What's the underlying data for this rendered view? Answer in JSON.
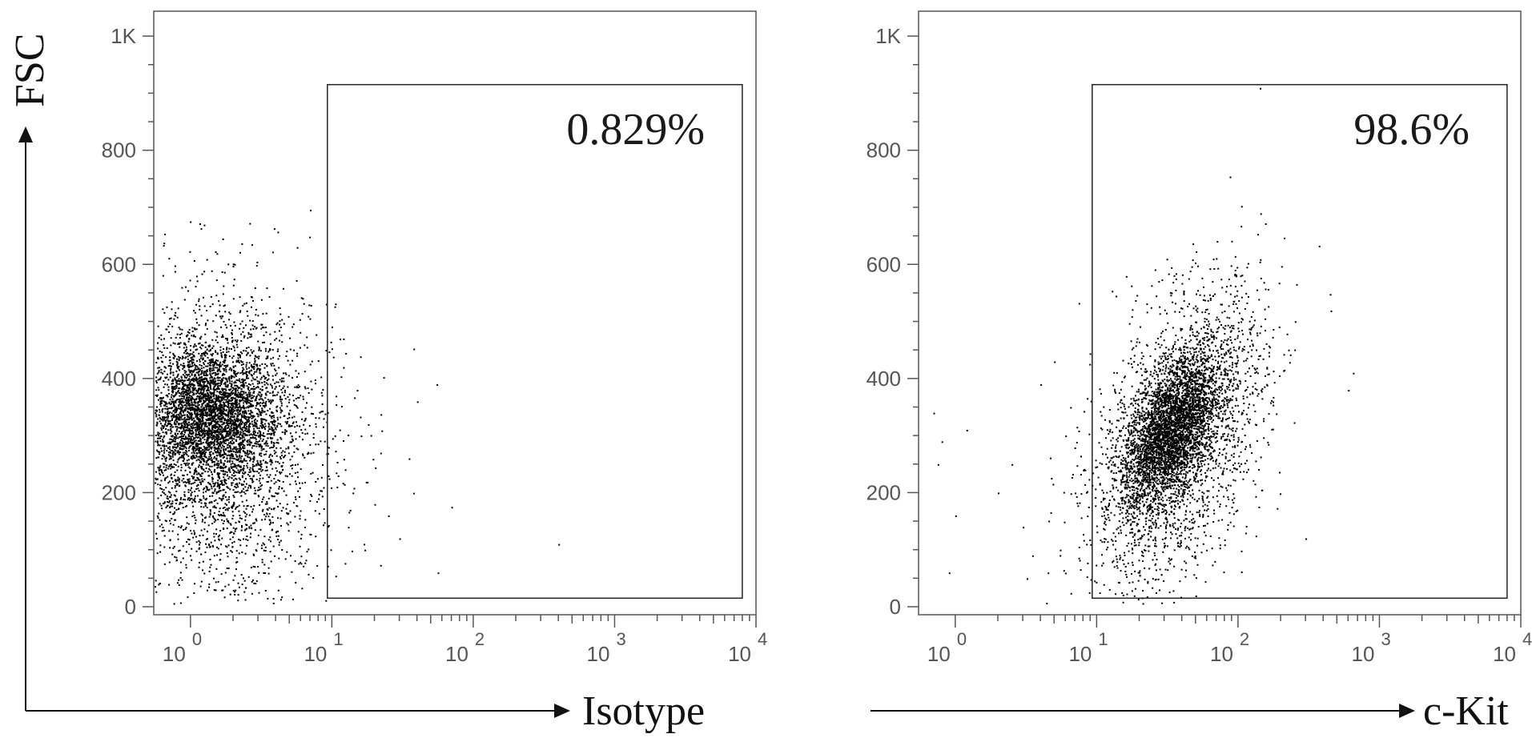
{
  "chart_data": [
    {
      "type": "scatter",
      "xlabel": "Isotype",
      "ylabel": "FSC",
      "x_scale": "log",
      "xlim": [
        0.55,
        10000
      ],
      "ylim": [
        0,
        1024
      ],
      "x_ticks": [
        {
          "base": "10",
          "exp": "0"
        },
        {
          "base": "10",
          "exp": "1"
        },
        {
          "base": "10",
          "exp": "2"
        },
        {
          "base": "10",
          "exp": "3"
        },
        {
          "base": "10",
          "exp": "4"
        }
      ],
      "y_ticks": [
        "0",
        "200",
        "400",
        "600",
        "800",
        "1K"
      ],
      "gate": {
        "x_min": 9.3,
        "x_max": 8000,
        "y_min": 15,
        "y_max": 915,
        "percent": "0.829%"
      },
      "populations": [
        {
          "cx": 1.3,
          "cy": 340,
          "sx_log": 0.22,
          "sy": 55,
          "n": 2600
        },
        {
          "cx": 1.6,
          "cy": 300,
          "sx_log": 0.32,
          "sy": 110,
          "n": 2400
        },
        {
          "cx": 1.8,
          "cy": 260,
          "sx_log": 0.4,
          "sy": 160,
          "n": 900
        }
      ],
      "outliers": [
        [
          12,
          420
        ],
        [
          15,
          380
        ],
        [
          18,
          320
        ],
        [
          22,
          270
        ],
        [
          11,
          230
        ],
        [
          14,
          200
        ],
        [
          20,
          180
        ],
        [
          25,
          160
        ],
        [
          13,
          140
        ],
        [
          30,
          120
        ],
        [
          17,
          100
        ],
        [
          40,
          360
        ],
        [
          55,
          390
        ],
        [
          70,
          175
        ],
        [
          400,
          110
        ],
        [
          56,
          60
        ],
        [
          12,
          470
        ],
        [
          16,
          300
        ],
        [
          35,
          260
        ]
      ]
    },
    {
      "type": "scatter",
      "xlabel": "c-Kit",
      "ylabel": "",
      "x_scale": "log",
      "xlim": [
        0.55,
        10000
      ],
      "ylim": [
        0,
        1024
      ],
      "x_ticks": [
        {
          "base": "10",
          "exp": "0"
        },
        {
          "base": "10",
          "exp": "1"
        },
        {
          "base": "10",
          "exp": "2"
        },
        {
          "base": "10",
          "exp": "3"
        },
        {
          "base": "10",
          "exp": "4"
        }
      ],
      "y_ticks": [
        "0",
        "200",
        "400",
        "600",
        "800",
        "1K"
      ],
      "gate": {
        "x_min": 9.3,
        "x_max": 8000,
        "y_min": 15,
        "y_max": 915,
        "percent": "98.6%"
      },
      "populations": [
        {
          "cx": 33,
          "cy": 310,
          "sx_log": 0.17,
          "sy": 65,
          "rho": 0.55,
          "n": 3200
        },
        {
          "cx": 38,
          "cy": 300,
          "sx_log": 0.3,
          "sy": 130,
          "rho": 0.45,
          "n": 2600
        }
      ],
      "outliers": [
        [
          0.7,
          340
        ],
        [
          0.8,
          290
        ],
        [
          1.0,
          160
        ],
        [
          1.2,
          310
        ],
        [
          0.9,
          60
        ],
        [
          2.5,
          250
        ],
        [
          3,
          140
        ],
        [
          3.5,
          90
        ],
        [
          4,
          390
        ],
        [
          4.5,
          60
        ],
        [
          5,
          430
        ],
        [
          6,
          300
        ],
        [
          7,
          200
        ],
        [
          8,
          240
        ],
        [
          6.5,
          350
        ],
        [
          5.5,
          100
        ],
        [
          2,
          200
        ],
        [
          600,
          380
        ],
        [
          650,
          410
        ],
        [
          300,
          120
        ],
        [
          0.75,
          250
        ],
        [
          3.2,
          50
        ]
      ]
    }
  ]
}
